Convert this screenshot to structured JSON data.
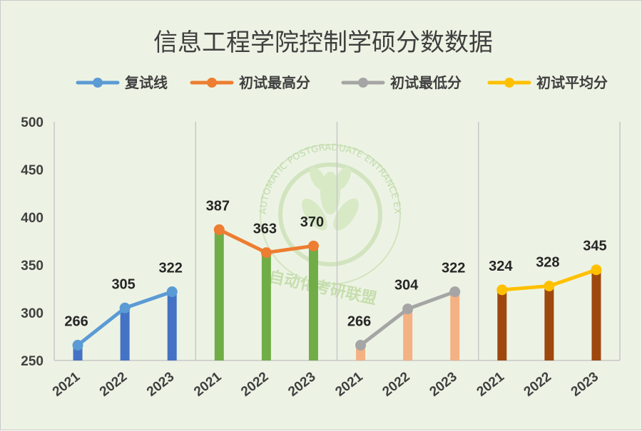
{
  "chart_data": {
    "type": "bar",
    "title": "信息工程学院控制学硕分数数据",
    "ylim": [
      250,
      500
    ],
    "yticks": [
      500,
      450,
      400,
      350,
      300,
      250
    ],
    "grid": false,
    "legend_position": "top",
    "groups": [
      {
        "series": "复试线",
        "categories": [
          "2021",
          "2022",
          "2023"
        ],
        "values": [
          266,
          305,
          322
        ],
        "bar_color": "#4472c4",
        "line_color": "#5b9bd5"
      },
      {
        "series": "初试最高分",
        "categories": [
          "2021",
          "2022",
          "2023"
        ],
        "values": [
          387,
          363,
          370
        ],
        "bar_color": "#70ad47",
        "line_color": "#ed7d31"
      },
      {
        "series": "初试最低分",
        "categories": [
          "2021",
          "2022",
          "2023"
        ],
        "values": [
          266,
          304,
          322
        ],
        "bar_color": "#f4b183",
        "line_color": "#a5a5a5"
      },
      {
        "series": "初试平均分",
        "categories": [
          "2021",
          "2022",
          "2023"
        ],
        "values": [
          324,
          328,
          345
        ],
        "bar_color": "#9e480e",
        "line_color": "#ffc000"
      }
    ]
  },
  "legend": [
    {
      "label": "复试线",
      "color": "#5b9bd5"
    },
    {
      "label": "初试最高分",
      "color": "#ed7d31"
    },
    {
      "label": "初试最低分",
      "color": "#a5a5a5"
    },
    {
      "label": "初试平均分",
      "color": "#ffc000"
    }
  ],
  "watermark": {
    "arc_text": "AUTOMATIC POSTGRADUATE ENTRANCE EXAMINATION ALLIANCE",
    "cn_text": "自动化考研联盟"
  }
}
